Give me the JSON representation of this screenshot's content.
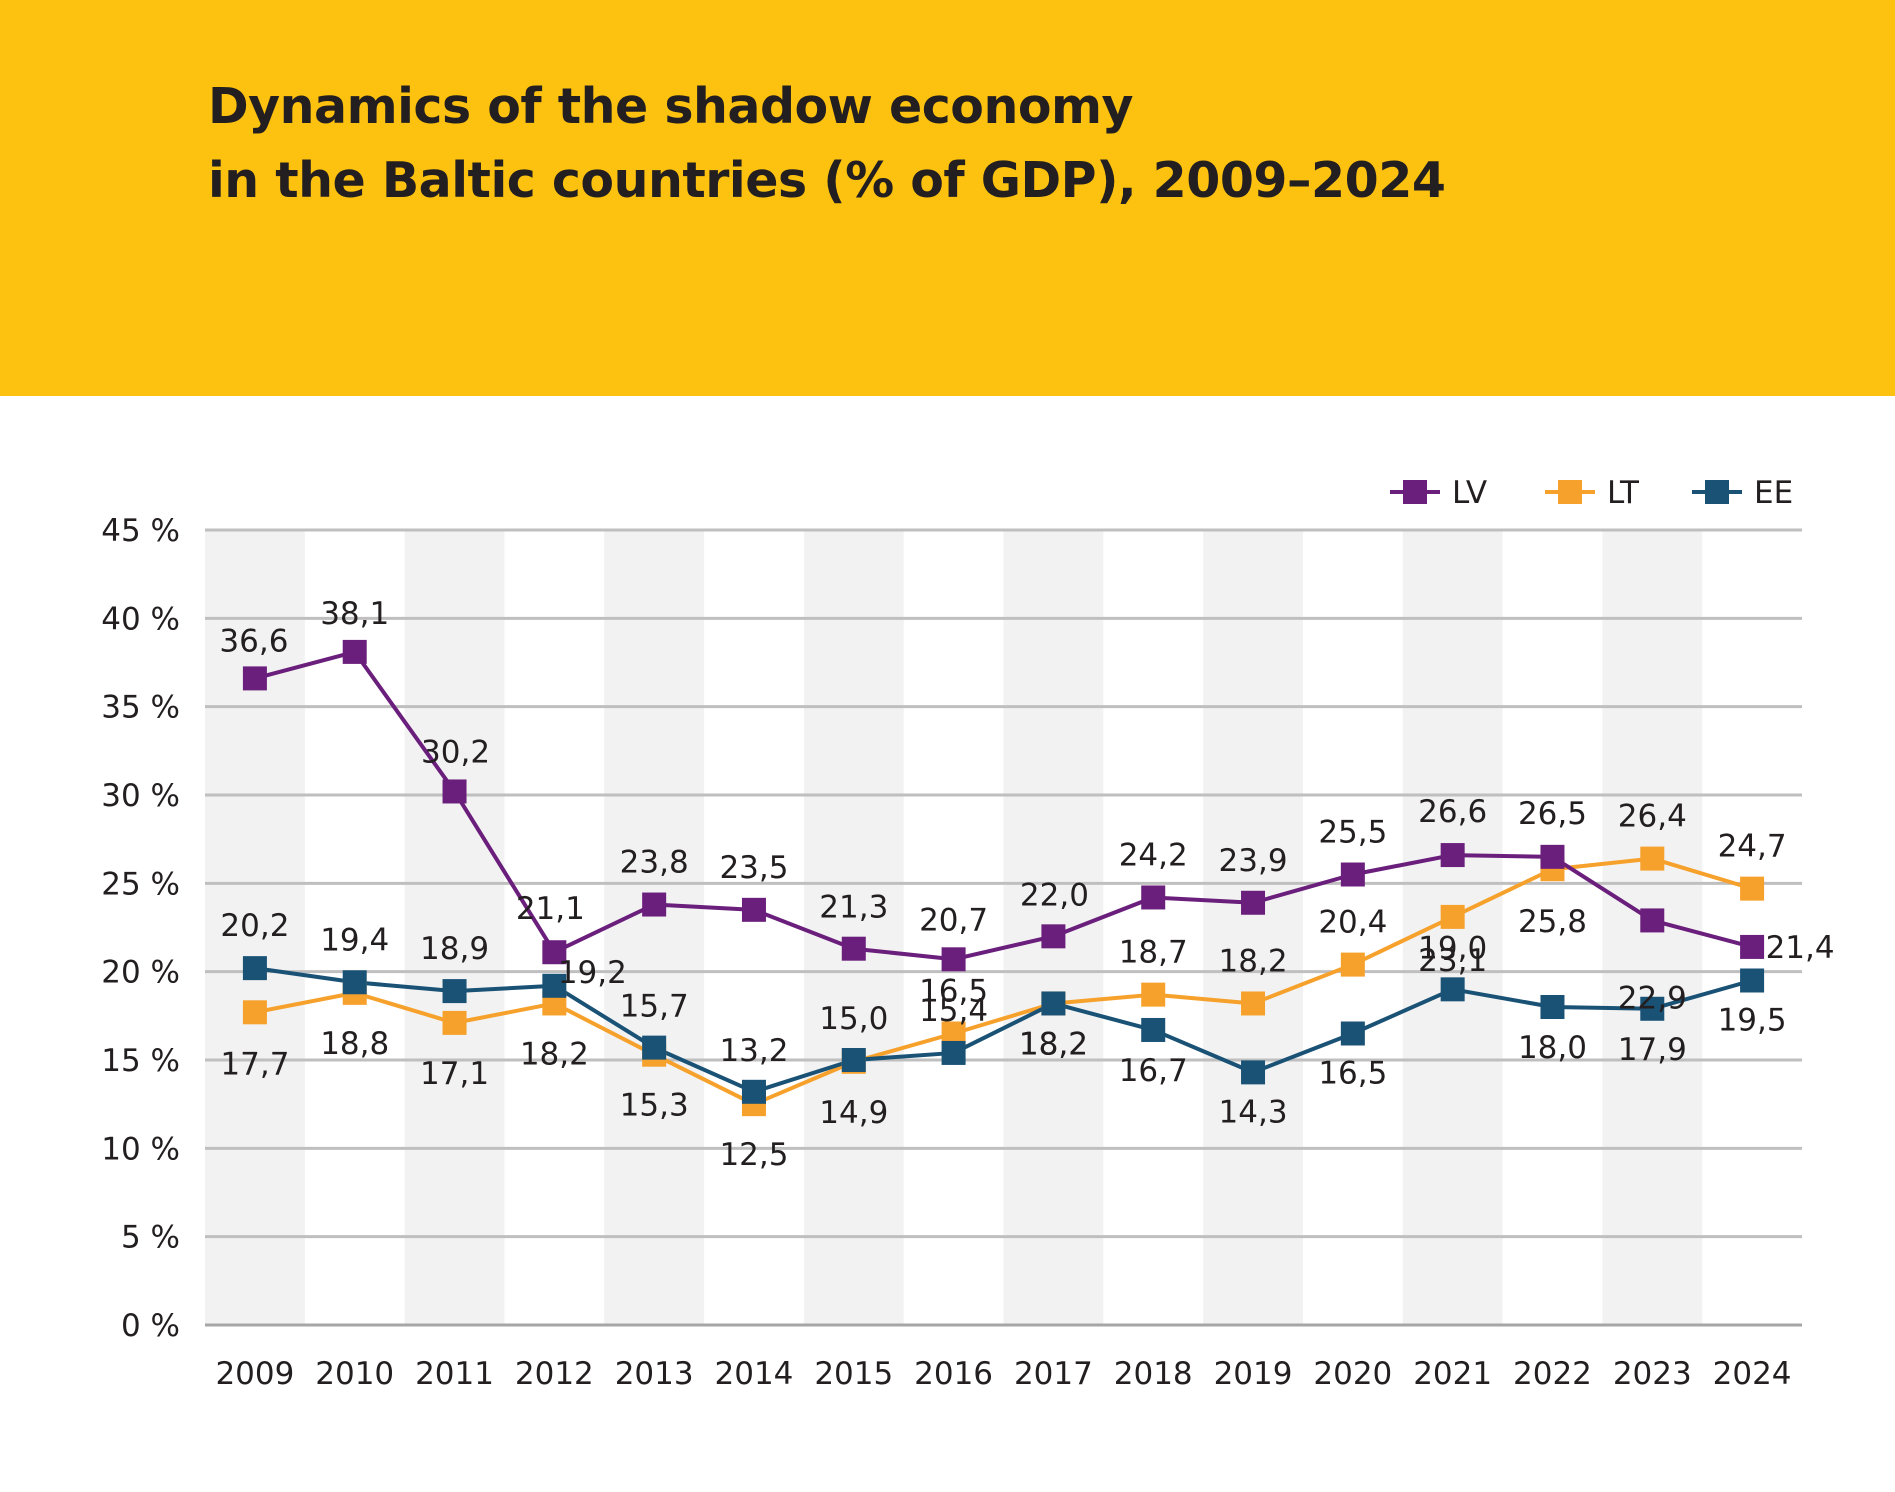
{
  "header": {
    "title_line1": "Dynamics of the shadow economy",
    "title_line2": "in the Baltic countries (% of GDP), 2009–2024",
    "background": "#FDC20F"
  },
  "chart_data": {
    "type": "line",
    "title": "Dynamics of the shadow economy in the Baltic countries (% of GDP), 2009–2024",
    "xlabel": "",
    "ylabel": "",
    "categories": [
      "2009",
      "2010",
      "2011",
      "2012",
      "2013",
      "2014",
      "2015",
      "2016",
      "2017",
      "2018",
      "2019",
      "2020",
      "2021",
      "2022",
      "2023",
      "2024"
    ],
    "ylim": [
      0,
      45
    ],
    "yticks": [
      0,
      5,
      10,
      15,
      20,
      25,
      30,
      35,
      40,
      45
    ],
    "ytick_labels": [
      "0 %",
      "5 %",
      "10 %",
      "15 %",
      "20 %",
      "25 %",
      "30 %",
      "35 %",
      "40 %",
      "45 %"
    ],
    "grid": true,
    "legend_position": "top-right",
    "series": [
      {
        "name": "LV",
        "color": "#6B1F7C",
        "values": [
          36.6,
          38.1,
          30.2,
          21.1,
          23.8,
          23.5,
          21.3,
          20.7,
          22.0,
          24.2,
          23.9,
          25.5,
          26.6,
          26.5,
          22.9,
          21.4
        ],
        "labels": [
          "36,6",
          "38,1",
          "30,2",
          "21,1",
          "23,8",
          "23,5",
          "21,3",
          "20,7",
          "22,0",
          "24,2",
          "23,9",
          "25,5",
          "26,6",
          "26,5",
          "22,9",
          "21,4"
        ]
      },
      {
        "name": "LT",
        "color": "#F7A12D",
        "values": [
          17.7,
          18.8,
          17.1,
          18.2,
          15.3,
          12.5,
          14.9,
          16.5,
          18.2,
          18.7,
          18.2,
          20.4,
          23.1,
          25.8,
          26.4,
          24.7
        ],
        "labels": [
          "17,7",
          "18,8",
          "17,1",
          "18,2",
          "15,3",
          "12,5",
          "14,9",
          "16,5",
          "18,2",
          "18,7",
          "18,2",
          "20,4",
          "23,1",
          "25,8",
          "26,4",
          "24,7"
        ]
      },
      {
        "name": "EE",
        "color": "#1A5276",
        "values": [
          20.2,
          19.4,
          18.9,
          19.2,
          15.7,
          13.2,
          15.0,
          15.4,
          18.2,
          16.7,
          14.3,
          16.5,
          19.0,
          18.0,
          17.9,
          19.5
        ],
        "labels": [
          "20,2",
          "19,4",
          "18,9",
          "19,2",
          "15,7",
          "13,2",
          "15,0",
          "15,4",
          "18,2",
          "16,7",
          "14,3",
          "16,5",
          "19,0",
          "18,0",
          "17,9",
          "19,5"
        ]
      }
    ]
  }
}
